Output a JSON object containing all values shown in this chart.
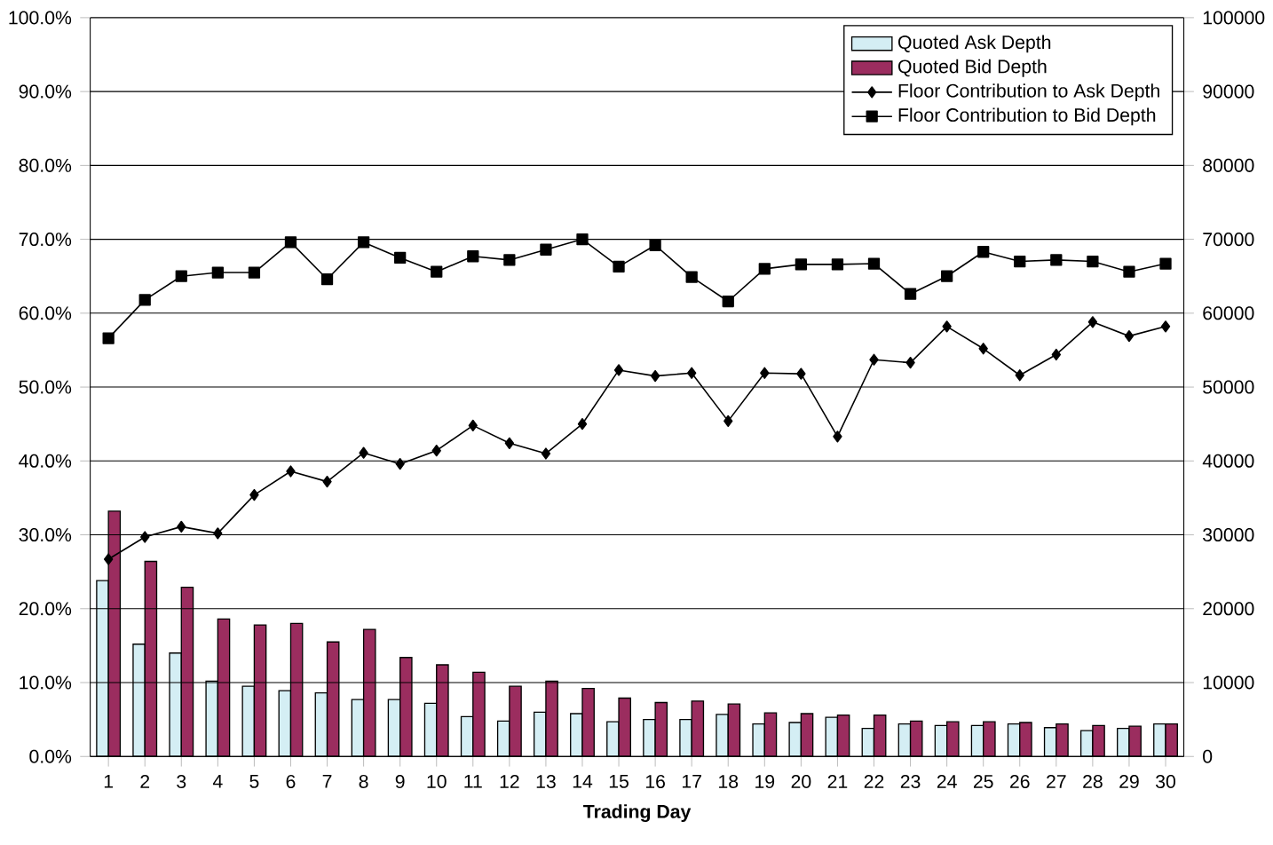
{
  "chart_data": {
    "type": "bar",
    "xlabel": "Trading Day",
    "categories": [
      "1",
      "2",
      "3",
      "4",
      "5",
      "6",
      "7",
      "8",
      "9",
      "10",
      "11",
      "12",
      "13",
      "14",
      "15",
      "16",
      "17",
      "18",
      "19",
      "20",
      "21",
      "22",
      "23",
      "24",
      "25",
      "26",
      "27",
      "28",
      "29",
      "30"
    ],
    "series": [
      {
        "name": "Quoted Ask Depth",
        "axis": "y2",
        "color": "#d4eef4",
        "values": [
          23800,
          15200,
          14000,
          10200,
          9500,
          8900,
          8600,
          7700,
          7700,
          7200,
          5400,
          4800,
          6000,
          5800,
          4700,
          5000,
          5000,
          5700,
          4400,
          4600,
          5300,
          3800,
          4400,
          4200,
          4200,
          4400,
          3900,
          3500,
          3800,
          4400
        ]
      },
      {
        "name": "Quoted Bid Depth",
        "axis": "y2",
        "color": "#9b2d5f",
        "values": [
          33200,
          26400,
          22900,
          18600,
          17800,
          18000,
          15500,
          17200,
          13400,
          12400,
          11400,
          9500,
          10200,
          9200,
          7900,
          7300,
          7500,
          7100,
          5900,
          5800,
          5600,
          5600,
          4800,
          4700,
          4700,
          4600,
          4400,
          4200,
          4100,
          4400
        ]
      },
      {
        "name": "Floor Contribution to Ask Depth",
        "type": "line",
        "marker": "diamond",
        "color": "#000000",
        "values": [
          26.7,
          29.7,
          31.1,
          30.2,
          35.4,
          38.6,
          37.2,
          41.1,
          39.6,
          41.4,
          44.8,
          42.4,
          41.0,
          45.0,
          52.3,
          51.5,
          51.9,
          45.4,
          51.9,
          51.8,
          43.3,
          53.7,
          53.3,
          58.2,
          55.2,
          51.6,
          54.4,
          58.8,
          56.9,
          58.2
        ]
      },
      {
        "name": "Floor Contribution to Bid Depth",
        "type": "line",
        "marker": "square",
        "color": "#000000",
        "values": [
          56.6,
          61.8,
          65.0,
          65.5,
          65.5,
          69.6,
          64.6,
          69.6,
          67.5,
          65.6,
          67.7,
          67.2,
          68.6,
          70.0,
          66.3,
          69.2,
          64.9,
          61.6,
          66.0,
          66.6,
          66.6,
          66.7,
          62.6,
          65.0,
          68.3,
          67.0,
          67.2,
          67.0,
          65.6,
          66.7
        ]
      }
    ],
    "ylim": [
      0,
      100
    ],
    "yticks": [
      {
        "value": 0,
        "label": "0.0%"
      },
      {
        "value": 10,
        "label": "10.0%"
      },
      {
        "value": 20,
        "label": "20.0%"
      },
      {
        "value": 30,
        "label": "30.0%"
      },
      {
        "value": 40,
        "label": "40.0%"
      },
      {
        "value": 50,
        "label": "50.0%"
      },
      {
        "value": 60,
        "label": "60.0%"
      },
      {
        "value": 70,
        "label": "70.0%"
      },
      {
        "value": 80,
        "label": "80.0%"
      },
      {
        "value": 90,
        "label": "90.0%"
      },
      {
        "value": 100,
        "label": "100.0%"
      }
    ],
    "y2lim": [
      0,
      100000
    ],
    "y2ticks": [
      0,
      10000,
      20000,
      30000,
      40000,
      50000,
      60000,
      70000,
      80000,
      90000,
      100000
    ],
    "grid": "y",
    "legend": "top right"
  }
}
